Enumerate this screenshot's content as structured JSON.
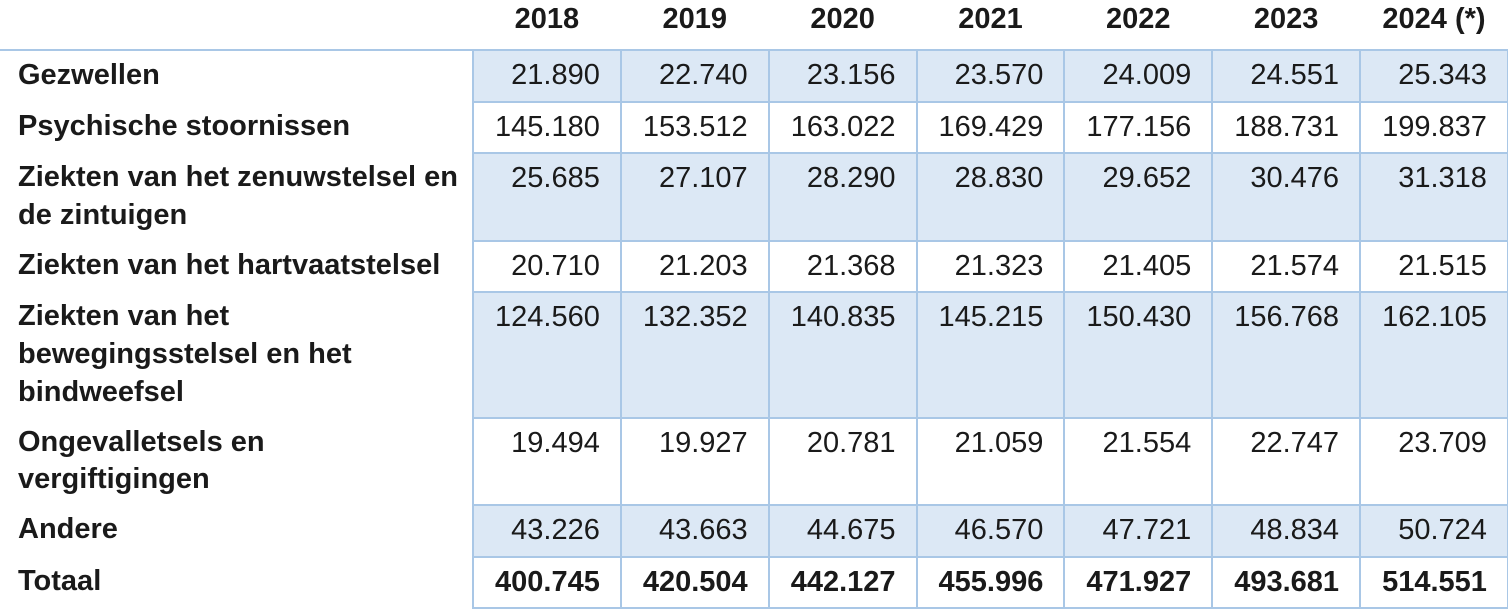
{
  "colors": {
    "row_fill": "#dce8f5",
    "grid_border": "#a9c7e6",
    "text": "#1a1a1a"
  },
  "chart_data": {
    "type": "table",
    "title": "",
    "columns": [
      "2018",
      "2019",
      "2020",
      "2021",
      "2022",
      "2023",
      "2024 (*)"
    ],
    "rows": [
      {
        "label": "Gezwellen",
        "display": [
          "21.890",
          "22.740",
          "23.156",
          "23.570",
          "24.009",
          "24.551",
          "25.343"
        ],
        "values": [
          21890,
          22740,
          23156,
          23570,
          24009,
          24551,
          25343
        ],
        "is_total": false
      },
      {
        "label": "Psychische stoornissen",
        "display": [
          "145.180",
          "153.512",
          "163.022",
          "169.429",
          "177.156",
          "188.731",
          "199.837"
        ],
        "values": [
          145180,
          153512,
          163022,
          169429,
          177156,
          188731,
          199837
        ],
        "is_total": false
      },
      {
        "label": "Ziekten van het zenuwstelsel en de zintuigen",
        "display": [
          "25.685",
          "27.107",
          "28.290",
          "28.830",
          "29.652",
          "30.476",
          "31.318"
        ],
        "values": [
          25685,
          27107,
          28290,
          28830,
          29652,
          30476,
          31318
        ],
        "is_total": false
      },
      {
        "label": "Ziekten van het hartvaatstelsel",
        "display": [
          "20.710",
          "21.203",
          "21.368",
          "21.323",
          "21.405",
          "21.574",
          "21.515"
        ],
        "values": [
          20710,
          21203,
          21368,
          21323,
          21405,
          21574,
          21515
        ],
        "is_total": false
      },
      {
        "label": "Ziekten van het bewegingsstelsel en het bindweefsel",
        "display": [
          "124.560",
          "132.352",
          "140.835",
          "145.215",
          "150.430",
          "156.768",
          "162.105"
        ],
        "values": [
          124560,
          132352,
          140835,
          145215,
          150430,
          156768,
          162105
        ],
        "is_total": false
      },
      {
        "label": "Ongevalletsels en vergiftigingen",
        "display": [
          "19.494",
          "19.927",
          "20.781",
          "21.059",
          "21.554",
          "22.747",
          "23.709"
        ],
        "values": [
          19494,
          19927,
          20781,
          21059,
          21554,
          22747,
          23709
        ],
        "is_total": false
      },
      {
        "label": "Andere",
        "display": [
          "43.226",
          "43.663",
          "44.675",
          "46.570",
          "47.721",
          "48.834",
          "50.724"
        ],
        "values": [
          43226,
          43663,
          44675,
          46570,
          47721,
          48834,
          50724
        ],
        "is_total": false
      },
      {
        "label": "Totaal",
        "display": [
          "400.745",
          "420.504",
          "442.127",
          "455.996",
          "471.927",
          "493.681",
          "514.551"
        ],
        "values": [
          400745,
          420504,
          442127,
          455996,
          471927,
          493681,
          514551
        ],
        "is_total": true
      }
    ],
    "layout": {
      "stripe_pattern": "odd-rows-filled",
      "label_column": "category",
      "legend": "none",
      "grid": "data-area-only"
    }
  }
}
